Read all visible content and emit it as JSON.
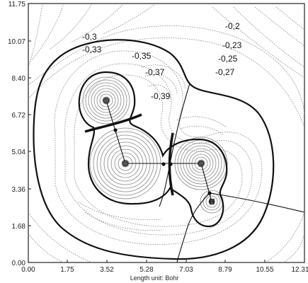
{
  "figure": {
    "x_ticks": [
      "0.00",
      "1.75",
      "3.52",
      "5.28",
      "7.03",
      "8.79",
      "10.55",
      "12.31"
    ],
    "y_ticks": [
      "11.75",
      "10.07",
      "8.40",
      "6.72",
      "5.04",
      "3.36",
      "1.68",
      "0.00"
    ],
    "unit_label": "Length unit: Bohr",
    "atom_label": "H",
    "contour_labels": [
      "-0,2",
      "-0,3",
      "-0,33",
      "-0,35",
      "-0,37",
      "-0,39",
      "-0,23",
      "-0,25",
      "-0,27"
    ]
  }
}
